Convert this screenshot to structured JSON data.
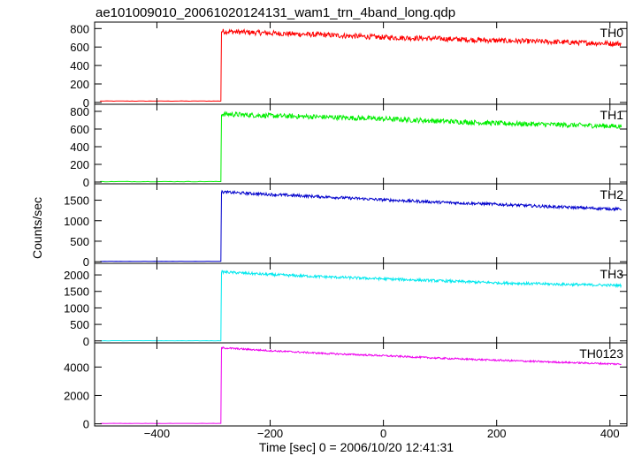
{
  "chart_data": {
    "type": "line",
    "title": "ae101009010_20061020124131_wam1_trn_4band_long.qdp",
    "xlabel": "Time [sec] 0 = 2006/10/20 12:41:31",
    "ylabel": "Counts/sec",
    "xlim": [
      -510,
      430
    ],
    "x_ticks": [
      -400,
      -200,
      0,
      200,
      400
    ],
    "x_tick_labels": [
      "−400",
      "−200",
      "0",
      "200",
      "400"
    ],
    "trigger_time": -287,
    "x_start": -500,
    "x_end": 420,
    "panels": [
      {
        "name": "TH0",
        "color": "#ff0000",
        "ylim": [
          -20,
          870
        ],
        "y_ticks": [
          0,
          200,
          400,
          600,
          800
        ],
        "y_tick_labels": [
          "0",
          "200",
          "400",
          "600",
          "800"
        ],
        "pre_level": 15,
        "x": [
          -285,
          -200,
          -100,
          0,
          100,
          200,
          300,
          420
        ],
        "y": [
          770,
          750,
          730,
          705,
          690,
          670,
          655,
          635
        ],
        "noise": 28
      },
      {
        "name": "TH1",
        "color": "#00ee00",
        "ylim": [
          -20,
          880
        ],
        "y_ticks": [
          0,
          200,
          400,
          600,
          800
        ],
        "y_tick_labels": [
          "0",
          "200",
          "400",
          "600",
          "800"
        ],
        "pre_level": 5,
        "x": [
          -285,
          -200,
          -100,
          0,
          100,
          200,
          300,
          420
        ],
        "y": [
          770,
          750,
          735,
          715,
          690,
          665,
          650,
          630
        ],
        "noise": 28
      },
      {
        "name": "TH2",
        "color": "#0000cc",
        "ylim": [
          -40,
          1900
        ],
        "y_ticks": [
          0,
          500,
          1000,
          1500
        ],
        "y_tick_labels": [
          "0",
          "500",
          "1000",
          "1500"
        ],
        "pre_level": 10,
        "x": [
          -285,
          -200,
          -100,
          0,
          100,
          200,
          300,
          420
        ],
        "y": [
          1700,
          1640,
          1580,
          1510,
          1450,
          1400,
          1340,
          1280
        ],
        "noise": 35
      },
      {
        "name": "TH3",
        "color": "#00e8ee",
        "ylim": [
          -60,
          2350
        ],
        "y_ticks": [
          0,
          500,
          1000,
          1500,
          2000
        ],
        "y_tick_labels": [
          "0",
          "500",
          "1000",
          "1500",
          "2000"
        ],
        "pre_level": 5,
        "x": [
          -285,
          -200,
          -100,
          0,
          100,
          200,
          300,
          420
        ],
        "y": [
          2090,
          2010,
          1940,
          1880,
          1820,
          1760,
          1720,
          1680
        ],
        "noise": 40
      },
      {
        "name": "TH0123",
        "color": "#ee00ee",
        "ylim": [
          -150,
          5700
        ],
        "y_ticks": [
          0,
          2000,
          4000
        ],
        "y_tick_labels": [
          "0",
          "2000",
          "4000"
        ],
        "pre_level": 30,
        "x": [
          -285,
          -200,
          -100,
          0,
          100,
          200,
          300,
          420
        ],
        "y": [
          5350,
          5150,
          4950,
          4800,
          4620,
          4480,
          4350,
          4200
        ],
        "noise": 60
      }
    ]
  }
}
